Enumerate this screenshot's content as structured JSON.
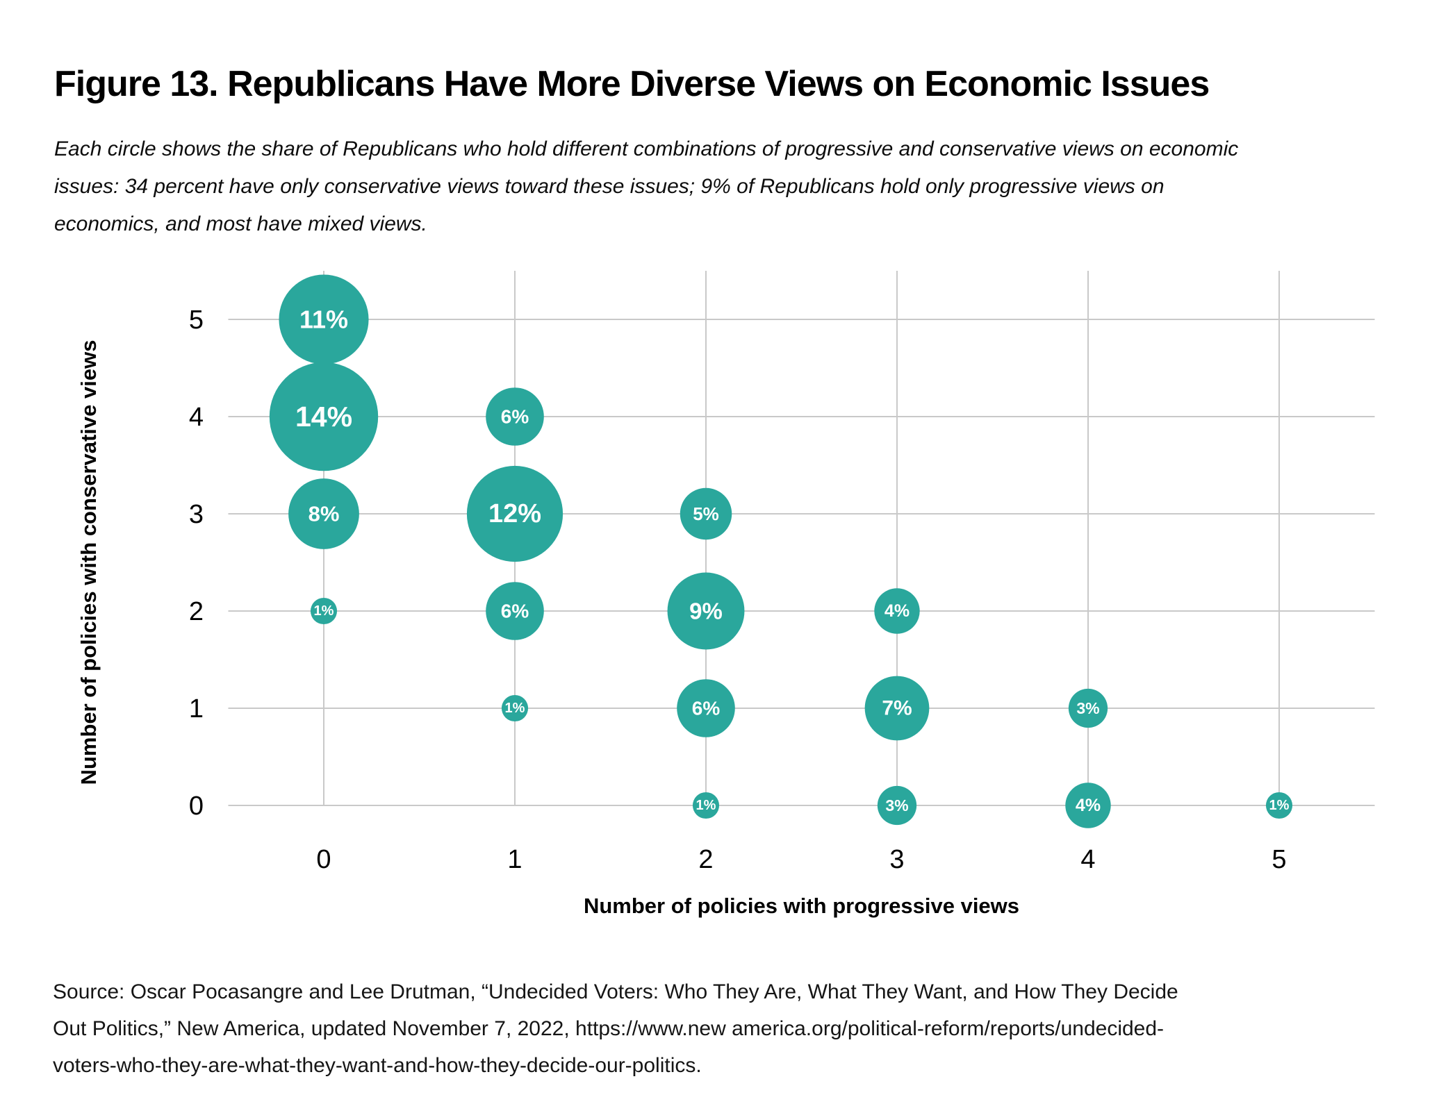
{
  "figure": {
    "title": "Figure 13. Republicans Have More Diverse Views on Economic Issues",
    "subtitle": "Each circle shows the share of Republicans who hold different combinations of progressive and conservative views on economic\nissues: 34 percent have only conservative views toward these issues; 9% of Republicans hold only progressive views on\neconomics, and most have mixed views.",
    "source": "Source: Oscar Pocasangre and Lee Drutman, “Undecided Voters: Who They Are, What They Want, and How They Decide\nOut Politics,” New America, updated November 7, 2022, https://www.new america.org/political-reform/reports/undecided-\nvoters-who-they-are-what-they-want-and-how-they-decide-our-politics."
  },
  "chart_data": {
    "type": "scatter",
    "subtype": "bubble",
    "xlabel": "Number of policies with progressive views",
    "ylabel": "Number of policies with conservative views",
    "x_ticks": [
      0,
      1,
      2,
      3,
      4,
      5
    ],
    "y_ticks": [
      0,
      1,
      2,
      3,
      4,
      5
    ],
    "xlim": [
      -0.5,
      5.5
    ],
    "ylim": [
      -0.5,
      5.5
    ],
    "grid": true,
    "legend": "none",
    "value_unit": "percent of Republicans",
    "points": [
      {
        "x": 0,
        "y": 5,
        "value": 11,
        "label": "11%"
      },
      {
        "x": 0,
        "y": 4,
        "value": 14,
        "label": "14%"
      },
      {
        "x": 0,
        "y": 3,
        "value": 8,
        "label": "8%"
      },
      {
        "x": 0,
        "y": 2,
        "value": 1,
        "label": "1%"
      },
      {
        "x": 1,
        "y": 4,
        "value": 6,
        "label": "6%"
      },
      {
        "x": 1,
        "y": 3,
        "value": 12,
        "label": "12%"
      },
      {
        "x": 1,
        "y": 2,
        "value": 6,
        "label": "6%"
      },
      {
        "x": 1,
        "y": 1,
        "value": 1,
        "label": "1%"
      },
      {
        "x": 2,
        "y": 3,
        "value": 5,
        "label": "5%"
      },
      {
        "x": 2,
        "y": 2,
        "value": 9,
        "label": "9%"
      },
      {
        "x": 2,
        "y": 1,
        "value": 6,
        "label": "6%"
      },
      {
        "x": 2,
        "y": 0,
        "value": 1,
        "label": "1%"
      },
      {
        "x": 3,
        "y": 2,
        "value": 4,
        "label": "4%"
      },
      {
        "x": 3,
        "y": 1,
        "value": 7,
        "label": "7%"
      },
      {
        "x": 3,
        "y": 0,
        "value": 3,
        "label": "3%"
      },
      {
        "x": 4,
        "y": 1,
        "value": 3,
        "label": "3%"
      },
      {
        "x": 4,
        "y": 0,
        "value": 4,
        "label": "4%"
      },
      {
        "x": 5,
        "y": 0,
        "value": 1,
        "label": "1%"
      }
    ],
    "colors": {
      "bubble": "#2AA79C",
      "bubble_label": "#FFFFFF",
      "gridline": "#C9C9C9",
      "axis_text": "#000000"
    }
  }
}
